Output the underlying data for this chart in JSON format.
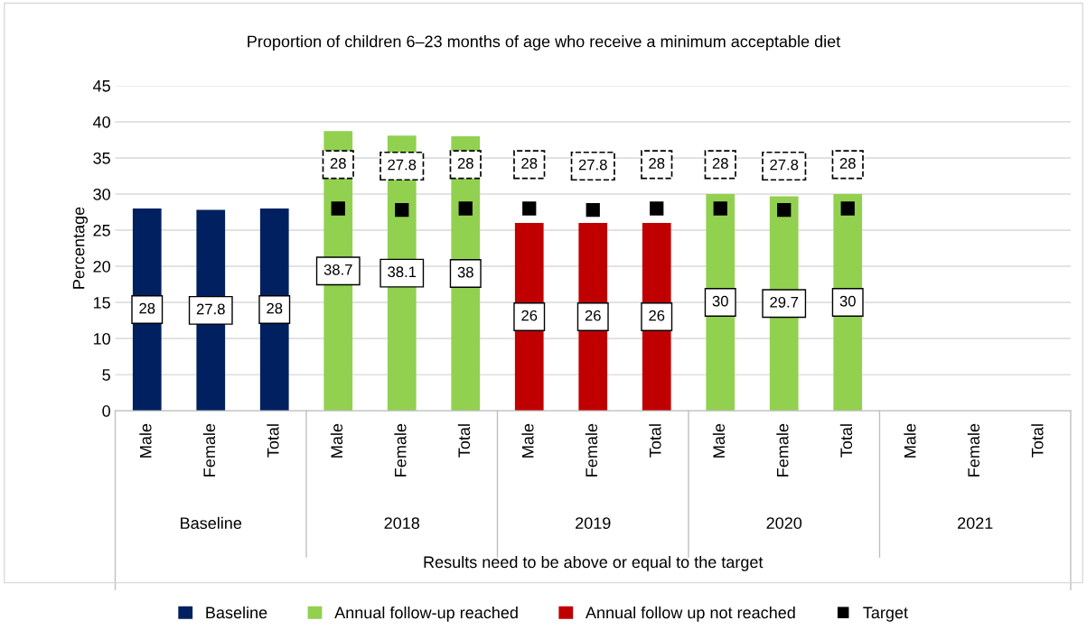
{
  "chart_data": {
    "type": "bar",
    "title": "Proportion of children 6–23 months of age who receive a minimum acceptable diet",
    "ylabel": "Percentage",
    "categories": [
      "Male",
      "Female",
      "Total",
      "Male",
      "Female",
      "Total",
      "Male",
      "Female",
      "Total",
      "Male",
      "Female",
      "Total",
      "Male",
      "Female",
      "Total"
    ],
    "series": [
      {
        "name": "Baseline",
        "color": "#002060",
        "values": [
          28,
          27.8,
          28,
          null,
          null,
          null,
          null,
          null,
          null,
          null,
          null,
          null,
          null,
          null,
          null
        ]
      },
      {
        "name": "Annual follow-up reached",
        "color": "#92d050",
        "values": [
          null,
          null,
          null,
          38.7,
          38.1,
          38,
          null,
          null,
          null,
          30,
          29.7,
          30,
          null,
          null,
          null
        ]
      },
      {
        "name": "Annual follow up not reached",
        "color": "#c00000",
        "values": [
          null,
          null,
          null,
          null,
          null,
          null,
          26,
          26,
          26,
          null,
          null,
          null,
          null,
          null,
          null
        ]
      },
      {
        "name": "Target",
        "type": "scatter",
        "marker": "square",
        "color": "#000000",
        "values": [
          null,
          null,
          null,
          28,
          27.8,
          28,
          28,
          27.8,
          28,
          28,
          27.8,
          28,
          null,
          null,
          null
        ]
      }
    ],
    "annotations": [
      "Baseline",
      "2018",
      "2019",
      "2020",
      "2021",
      "Results need to be above or equal to the target"
    ],
    "ylim": [
      0,
      45
    ],
    "yticks": [
      0,
      5,
      10,
      15,
      20,
      25,
      30,
      35,
      40,
      45
    ],
    "grid": "y",
    "legend": "bottom",
    "data_labels": true
  }
}
